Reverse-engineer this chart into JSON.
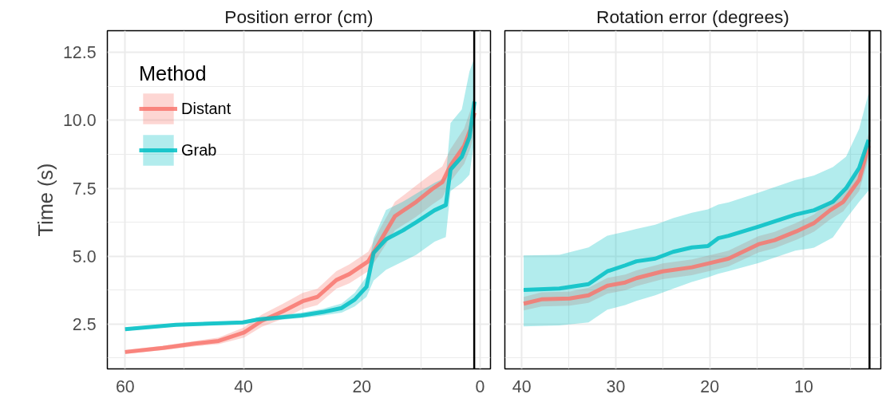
{
  "chart_data": [
    {
      "type": "line",
      "title": "Position error (cm)",
      "ylabel": "Time (s)",
      "legend_title": "Method",
      "legend": "top left",
      "grid": true,
      "xlim": [
        63,
        -1.75
      ],
      "ylim": [
        0.85,
        13.3
      ],
      "xticks": [
        60,
        40,
        20,
        0
      ],
      "yticks": [
        2.5,
        {
          "value": 5,
          "label": "5.0"
        },
        7.5,
        {
          "value": 10,
          "label": "10.0"
        },
        12.5
      ],
      "ref_lines": [
        {
          "axis": "x",
          "value": 1,
          "color": "#000000"
        }
      ],
      "series": [
        {
          "name": "Distant",
          "color": "#f8766d",
          "x": [
            60,
            53.6,
            48.2,
            44.2,
            39.9,
            36.9,
            33.3,
            30,
            27.5,
            24.3,
            22.1,
            18.9,
            17.2,
            14.4,
            10.8,
            8.1,
            6.4,
            5.0,
            2.7,
            1.6,
            0.95
          ],
          "values": [
            1.47,
            1.62,
            1.78,
            1.88,
            2.19,
            2.62,
            2.97,
            3.34,
            3.5,
            4.12,
            4.34,
            4.81,
            5.44,
            6.47,
            7.0,
            7.47,
            7.72,
            8.34,
            9.06,
            9.7,
            10.28
          ],
          "lower": [
            1.4,
            1.54,
            1.68,
            1.76,
            2.0,
            2.4,
            2.7,
            3.05,
            3.2,
            3.8,
            4.0,
            4.45,
            5.0,
            5.95,
            6.45,
            6.9,
            7.15,
            7.75,
            8.4,
            9.0,
            9.6
          ],
          "upper": [
            1.55,
            1.7,
            1.88,
            2.0,
            2.38,
            2.85,
            3.25,
            3.65,
            3.8,
            4.45,
            4.7,
            5.17,
            5.9,
            7.0,
            7.6,
            8.05,
            8.3,
            8.95,
            9.7,
            10.4,
            11.0
          ]
        },
        {
          "name": "Grab",
          "color": "#00bfc4",
          "x": [
            60,
            51.4,
            40.1,
            37.8,
            30.2,
            26.6,
            23.4,
            21.2,
            19.2,
            18.0,
            15.9,
            13.1,
            10.8,
            7.7,
            5.8,
            5.0,
            3.1,
            1.8,
            0.95
          ],
          "values": [
            2.31,
            2.47,
            2.56,
            2.66,
            2.82,
            2.94,
            3.09,
            3.4,
            3.87,
            5.12,
            5.62,
            5.94,
            6.25,
            6.69,
            6.88,
            8.19,
            8.66,
            9.38,
            10.69
          ],
          "lower": [
            2.25,
            2.41,
            2.5,
            2.58,
            2.72,
            2.82,
            2.92,
            3.15,
            3.5,
            4.1,
            4.5,
            4.8,
            5.05,
            5.53,
            5.7,
            7.4,
            7.7,
            8.0,
            9.3
          ],
          "upper": [
            2.37,
            2.53,
            2.62,
            2.74,
            2.92,
            3.06,
            3.26,
            3.65,
            4.25,
            5.66,
            6.7,
            7.0,
            7.3,
            7.7,
            7.9,
            9.9,
            10.4,
            11.8,
            12.3
          ]
        }
      ]
    },
    {
      "type": "line",
      "title": "Rotation error (degrees)",
      "grid": true,
      "tick_labels": "x",
      "xlim": [
        41.8,
        1.8
      ],
      "ylim": [
        0.85,
        13.3
      ],
      "xticks": [
        40,
        30,
        20,
        10
      ],
      "yticks": [
        2.5,
        5,
        7.5,
        10,
        12.5
      ],
      "ref_lines": [
        {
          "axis": "x",
          "value": 3,
          "color": "#000000"
        }
      ],
      "series": [
        {
          "color": "#f8766d",
          "x": [
            39.8,
            37.9,
            34.9,
            32.9,
            30.9,
            29.0,
            27.8,
            25.0,
            21.9,
            19.9,
            18.0,
            14.8,
            13.1,
            10.8,
            8.9,
            7.2,
            5.8,
            4.1,
            3.1
          ],
          "values": [
            3.25,
            3.41,
            3.44,
            3.56,
            3.91,
            4.03,
            4.19,
            4.44,
            4.59,
            4.75,
            4.91,
            5.44,
            5.59,
            5.91,
            6.22,
            6.69,
            7.0,
            7.81,
            9.06
          ],
          "lower": [
            3.0,
            3.15,
            3.18,
            3.28,
            3.62,
            3.74,
            3.9,
            4.15,
            4.3,
            4.46,
            4.62,
            5.14,
            5.29,
            5.6,
            5.9,
            6.35,
            6.65,
            7.4,
            8.6
          ],
          "upper": [
            3.5,
            3.67,
            3.7,
            3.84,
            4.2,
            4.32,
            4.48,
            4.73,
            4.88,
            5.04,
            5.2,
            5.74,
            5.89,
            6.22,
            6.54,
            7.03,
            7.35,
            8.22,
            9.52
          ]
        },
        {
          "color": "#00bfc4",
          "x": [
            39.8,
            36.0,
            32.9,
            30.9,
            29.0,
            27.8,
            25.8,
            23.9,
            21.9,
            20.2,
            19.1,
            18.0,
            14.8,
            10.9,
            8.9,
            6.9,
            5.5,
            4.1,
            3.1
          ],
          "values": [
            3.76,
            3.81,
            3.97,
            4.44,
            4.66,
            4.81,
            4.91,
            5.16,
            5.32,
            5.37,
            5.66,
            5.75,
            6.09,
            6.53,
            6.69,
            7.0,
            7.5,
            8.25,
            9.28
          ],
          "lower": [
            2.41,
            2.45,
            2.56,
            3.03,
            3.2,
            3.35,
            3.56,
            3.8,
            4.05,
            4.22,
            4.35,
            4.45,
            4.75,
            5.2,
            5.31,
            5.69,
            6.37,
            7.0,
            7.41
          ],
          "upper": [
            5.03,
            5.05,
            5.32,
            5.75,
            5.9,
            6.0,
            6.16,
            6.4,
            6.6,
            6.72,
            6.9,
            6.98,
            7.34,
            7.8,
            7.97,
            8.28,
            8.66,
            9.69,
            11.0
          ]
        }
      ]
    }
  ]
}
